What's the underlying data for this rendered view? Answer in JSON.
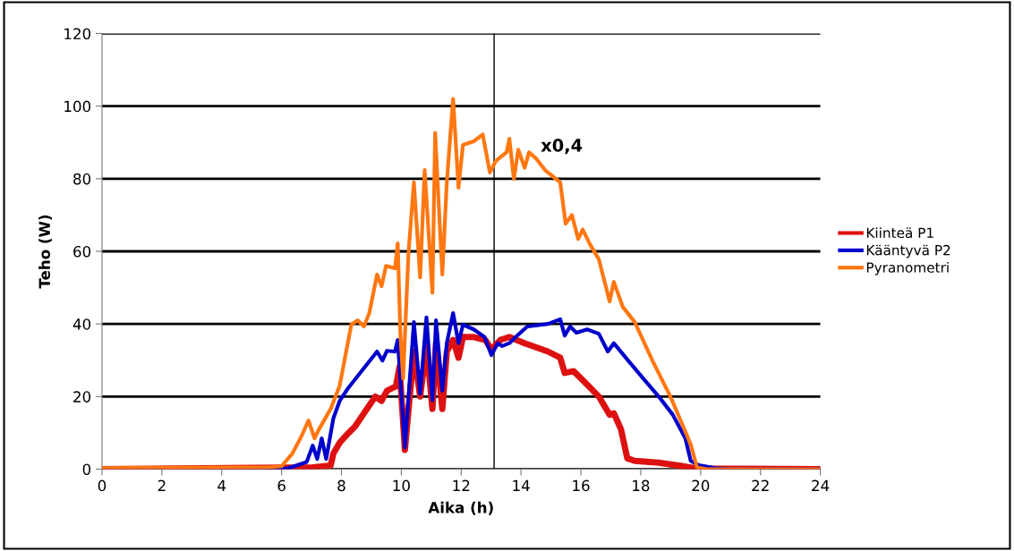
{
  "chart_data": {
    "type": "line",
    "xlabel": "Aika (h)",
    "ylabel": "Teho (W)",
    "xlim": [
      0,
      24
    ],
    "xticks": [
      0,
      2,
      4,
      6,
      8,
      10,
      12,
      14,
      16,
      18,
      20,
      22,
      24
    ],
    "ylim": [
      0,
      120
    ],
    "yticks": [
      0,
      20,
      40,
      60,
      80,
      100,
      120
    ],
    "grid": "y",
    "legend": "right",
    "marker": "none",
    "line_style": "solid",
    "ref_lines": [
      {
        "axis": "x",
        "value": 13.1,
        "color": "#000000"
      }
    ],
    "annotations": [
      "x0,4"
    ],
    "series": [
      {
        "name": "Kiinteä P1",
        "color": "#dd1111",
        "x": [
          0,
          7.04,
          7.64,
          7.73,
          7.94,
          8.24,
          8.45,
          9.13,
          9.34,
          9.52,
          9.82,
          9.94,
          10.12,
          10.42,
          10.63,
          10.84,
          11.04,
          11.16,
          11.37,
          11.52,
          11.73,
          11.91,
          12.06,
          12.42,
          12.81,
          13.01,
          13.31,
          13.61,
          14.12,
          14.9,
          15.31,
          15.46,
          15.76,
          16.21,
          16.6,
          16.96,
          17.1,
          17.34,
          17.55,
          17.8,
          18.6,
          19.58,
          19.88,
          24
        ],
        "values": [
          0,
          0.5,
          1,
          4.3,
          7.3,
          10,
          11.7,
          20,
          18.8,
          21.6,
          22.8,
          28.2,
          5.3,
          32.4,
          20,
          33.9,
          16.6,
          34.7,
          16.6,
          32.4,
          35.6,
          30.7,
          36.4,
          36.4,
          35.6,
          33,
          35.6,
          36.4,
          34.7,
          32.4,
          30.7,
          26.5,
          27,
          23.3,
          20,
          15,
          15.4,
          11,
          3,
          2.3,
          1.8,
          0.6,
          0.2,
          0
        ]
      },
      {
        "name": "Kääntyvä P2",
        "color": "#0000cc",
        "x": [
          0,
          6.24,
          6.84,
          7.04,
          7.19,
          7.34,
          7.49,
          7.73,
          7.94,
          8.24,
          9.19,
          9.37,
          9.52,
          9.79,
          9.88,
          10.12,
          10.42,
          10.63,
          10.84,
          11.04,
          11.16,
          11.37,
          11.52,
          11.73,
          11.91,
          12.06,
          12.42,
          12.78,
          13.01,
          13.22,
          13.37,
          13.61,
          13.82,
          14.21,
          14.9,
          15.31,
          15.46,
          15.64,
          15.85,
          16.21,
          16.6,
          16.9,
          17.1,
          17.58,
          18.09,
          18.6,
          19.07,
          19.49,
          19.67,
          19.94,
          20.48,
          21,
          24
        ],
        "values": [
          0,
          0.3,
          2,
          6.5,
          2.8,
          8.5,
          2.8,
          14,
          18.8,
          22.5,
          32.4,
          29.9,
          32.6,
          32.4,
          35.6,
          6,
          40.5,
          20.8,
          41.8,
          19,
          41,
          21.6,
          34.7,
          43,
          34.7,
          39.8,
          38.5,
          36.4,
          31.4,
          34.7,
          33.9,
          34.7,
          36.4,
          39.3,
          40,
          41.3,
          36.8,
          39.3,
          37.6,
          38.5,
          37.3,
          32.4,
          34.7,
          29.9,
          24.9,
          20,
          15,
          8.5,
          2.3,
          1.1,
          0.3,
          0,
          0
        ]
      },
      {
        "name": "Pyranometri",
        "color": "#ff7711",
        "x": [
          0,
          5.55,
          6.0,
          6.36,
          6.66,
          6.9,
          7.1,
          7.25,
          7.64,
          7.94,
          8.33,
          8.54,
          8.75,
          8.93,
          9.19,
          9.34,
          9.49,
          9.79,
          9.88,
          9.97,
          10.06,
          10.24,
          10.42,
          10.63,
          10.78,
          11.04,
          11.13,
          11.37,
          11.52,
          11.73,
          11.91,
          12.06,
          12.42,
          12.72,
          12.96,
          13.16,
          13.52,
          13.61,
          13.76,
          13.91,
          14.12,
          14.27,
          14.5,
          14.8,
          15.31,
          15.49,
          15.7,
          15.91,
          16.06,
          16.3,
          16.6,
          16.96,
          17.1,
          17.4,
          17.8,
          18.39,
          18.99,
          19.37,
          19.67,
          19.88,
          20.2,
          24
        ],
        "values": [
          0.3,
          0.5,
          0.8,
          4.3,
          9,
          13.4,
          8.5,
          11,
          16.6,
          23,
          39.8,
          41,
          39.3,
          43,
          53.6,
          50.4,
          56,
          55.3,
          62.2,
          37,
          25,
          59.5,
          79,
          52.8,
          82.4,
          48.6,
          92.6,
          53.6,
          79,
          102,
          77.5,
          89.3,
          90.3,
          92.2,
          81.7,
          84.9,
          87.3,
          91,
          80,
          88,
          83,
          87.3,
          85.6,
          82.4,
          79,
          67.6,
          70,
          63.4,
          66,
          62,
          57.8,
          46.2,
          51.6,
          44.7,
          40.5,
          29.9,
          20,
          12.7,
          6.8,
          0.5,
          0,
          0
        ]
      }
    ]
  }
}
